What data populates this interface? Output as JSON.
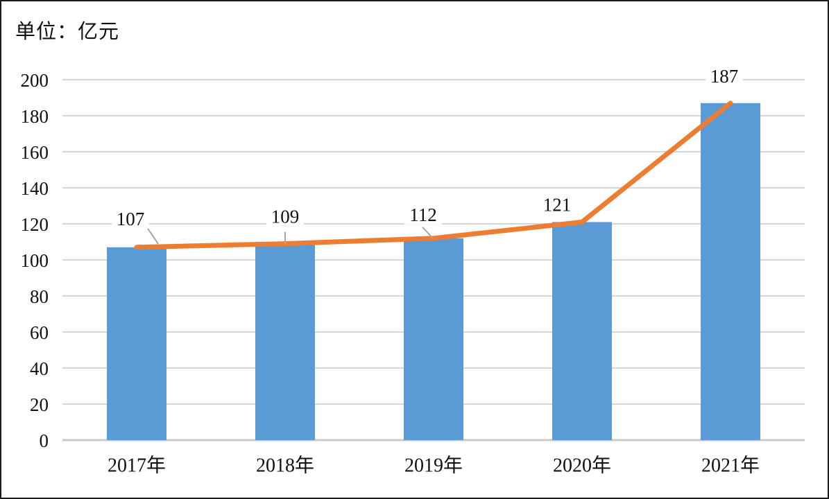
{
  "chart": {
    "unit_label": "单位：亿元"
  },
  "chart_data": {
    "type": "bar",
    "subtype": "bar with line overlay (combo)",
    "title": "",
    "unit_label": "单位：亿元",
    "xlabel": "",
    "ylabel": "",
    "categories": [
      "2017年",
      "2018年",
      "2019年",
      "2020年",
      "2021年"
    ],
    "series": [
      {
        "type": "bar",
        "values": [
          107,
          109,
          112,
          121,
          187
        ]
      },
      {
        "type": "line",
        "values": [
          107,
          109,
          112,
          121,
          187
        ]
      }
    ],
    "data_labels": [
      "107",
      "109",
      "112",
      "121",
      "187"
    ],
    "ylim": [
      0,
      200
    ],
    "yticks": [
      0,
      20,
      40,
      60,
      80,
      100,
      120,
      140,
      160,
      180,
      200
    ],
    "grid": true,
    "legend": false
  },
  "colors": {
    "bar": "#5B9BD5",
    "line": "#ED7D31",
    "grid": "#D6D6D6",
    "baseline": "#C9C9C9",
    "text": "#111111",
    "leader": "#A6A6A6",
    "background": "#FFFFFF",
    "border": "#1A1A1A"
  }
}
